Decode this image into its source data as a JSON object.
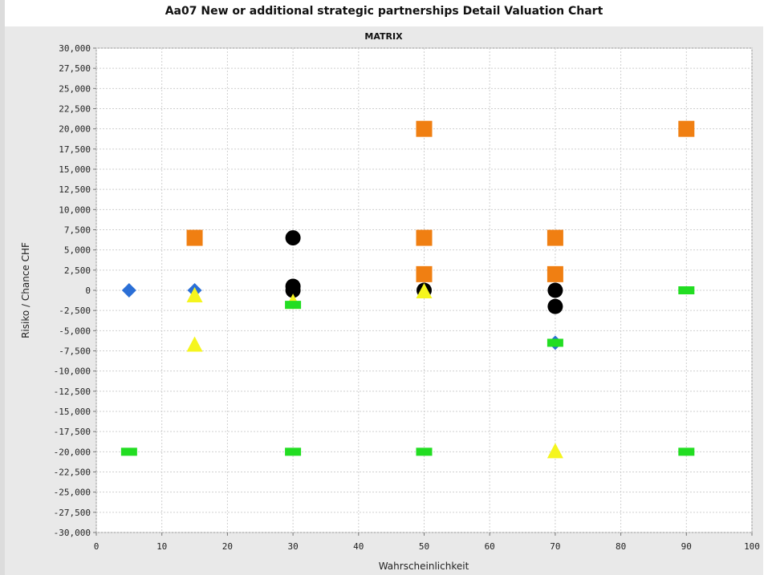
{
  "chart_data": {
    "type": "scatter",
    "title": "Aa07 New or additional strategic partnerships Detail Valuation Chart",
    "subtitle": "MATRIX",
    "xlabel": "Wahrscheinlichkeit",
    "ylabel": "Risiko / Chance CHF",
    "xlim": [
      0,
      100
    ],
    "ylim": [
      -30000,
      30000
    ],
    "x_ticks": [
      0,
      10,
      20,
      30,
      40,
      50,
      60,
      70,
      80,
      90,
      100
    ],
    "y_ticks": [
      30000,
      27500,
      25000,
      22500,
      20000,
      17500,
      15000,
      12500,
      10000,
      7500,
      5000,
      2500,
      0,
      -2500,
      -5000,
      -7500,
      -10000,
      -12500,
      -15000,
      -17500,
      -20000,
      -22500,
      -25000,
      -27500,
      -30000
    ],
    "x_tick_labels": [
      "0",
      "10",
      "20",
      "30",
      "40",
      "50",
      "60",
      "70",
      "80",
      "90",
      "100"
    ],
    "y_tick_labels": [
      "30,000",
      "27,500",
      "25,000",
      "22,500",
      "20,000",
      "17,500",
      "15,000",
      "12,500",
      "10,000",
      "7,500",
      "5,000",
      "2,500",
      "0",
      "-2,500",
      "-5,000",
      "-7,500",
      "-10,000",
      "-12,500",
      "-15,000",
      "-17,500",
      "-20,000",
      "-22,500",
      "-25,000",
      "-27,500",
      "-30,000"
    ],
    "grid": true,
    "legend": "none",
    "series": [
      {
        "marker": "square",
        "color": "#f07f12",
        "points": [
          [
            15,
            6500
          ],
          [
            50,
            20000
          ],
          [
            50,
            6500
          ],
          [
            50,
            2000
          ],
          [
            70,
            6500
          ],
          [
            70,
            2000
          ],
          [
            90,
            20000
          ]
        ]
      },
      {
        "marker": "circle",
        "color": "#000000",
        "points": [
          [
            30,
            6500
          ],
          [
            30,
            500
          ],
          [
            30,
            0
          ],
          [
            50,
            0
          ],
          [
            70,
            0
          ],
          [
            70,
            -2000
          ]
        ]
      },
      {
        "marker": "diamond",
        "color": "#2b6fd6",
        "points": [
          [
            5,
            0
          ],
          [
            15,
            0
          ],
          [
            70,
            -6500
          ]
        ]
      },
      {
        "marker": "triangle",
        "color": "#f5f51e",
        "points": [
          [
            15,
            -700
          ],
          [
            15,
            -6800
          ],
          [
            30,
            -1500
          ],
          [
            50,
            -200
          ],
          [
            70,
            -20000
          ]
        ]
      },
      {
        "marker": "rect",
        "color": "#22dd22",
        "points": [
          [
            5,
            -20000
          ],
          [
            30,
            -20000
          ],
          [
            30,
            -1800
          ],
          [
            50,
            -20000
          ],
          [
            70,
            -6500
          ],
          [
            90,
            0
          ],
          [
            90,
            -20000
          ]
        ]
      }
    ]
  }
}
